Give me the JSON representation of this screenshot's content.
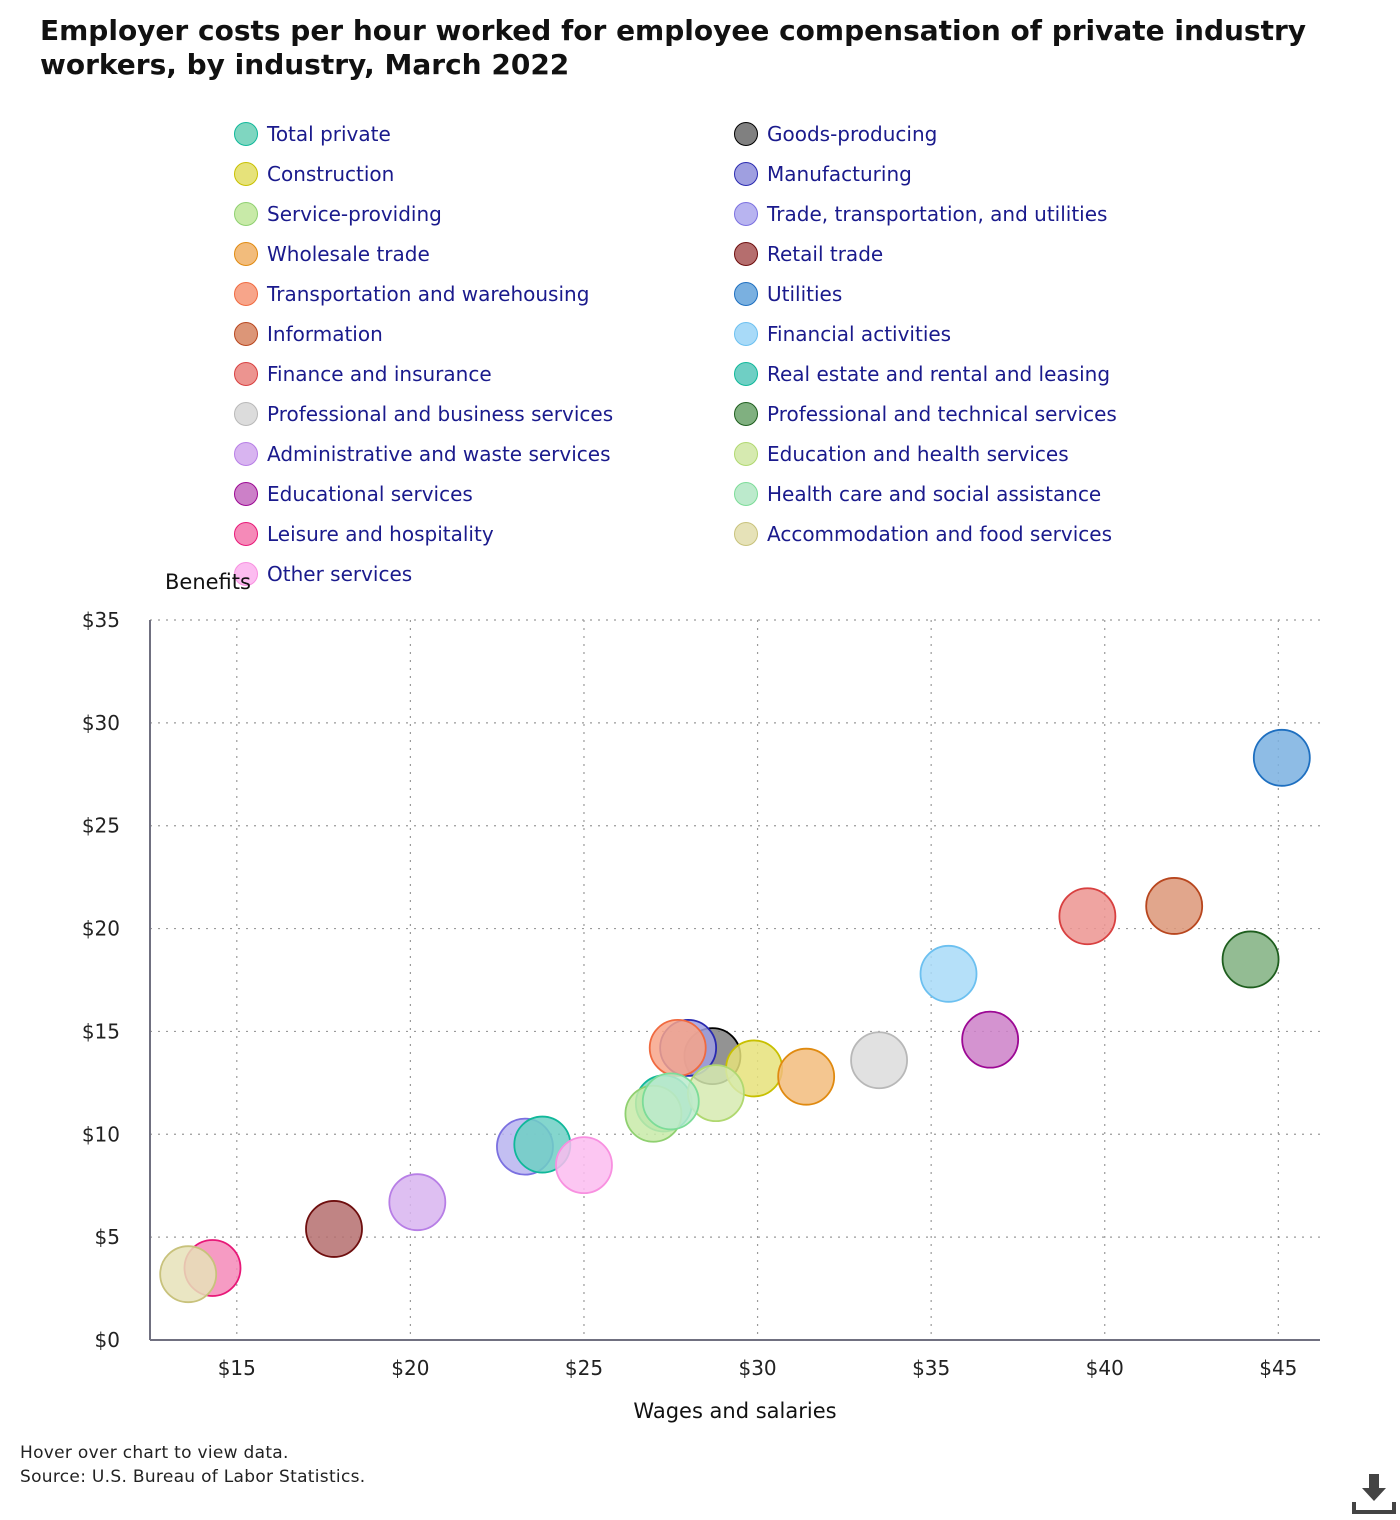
{
  "chart_data": {
    "type": "scatter",
    "title": "Employer costs per hour worked for employee compensation of private industry workers, by industry, March 2022",
    "xlabel": "Wages and salaries",
    "ylabel": "Benefits",
    "xlim": [
      12.5,
      46.2
    ],
    "ylim": [
      0,
      35
    ],
    "x_ticks": [
      15,
      20,
      25,
      30,
      35,
      40,
      45
    ],
    "x_tick_labels": [
      "$15",
      "$20",
      "$25",
      "$30",
      "$35",
      "$40",
      "$45"
    ],
    "y_ticks": [
      0,
      5,
      10,
      15,
      20,
      25,
      30,
      35
    ],
    "y_tick_labels": [
      "$0",
      "$5",
      "$10",
      "$15",
      "$20",
      "$25",
      "$30",
      "$35"
    ],
    "grid": true,
    "legend_position": "top",
    "series": [
      {
        "name": "Total private",
        "x": 27.3,
        "y": 11.5,
        "fill": "#7fd6c0",
        "stroke": "#10b89a"
      },
      {
        "name": "Goods-producing",
        "x": 28.7,
        "y": 13.8,
        "fill": "#808080",
        "stroke": "#000000"
      },
      {
        "name": "Construction",
        "x": 29.9,
        "y": 13.2,
        "fill": "#e6e27a",
        "stroke": "#c8c000"
      },
      {
        "name": "Manufacturing",
        "x": 28.0,
        "y": 14.2,
        "fill": "#9f9fe0",
        "stroke": "#2a2ab0"
      },
      {
        "name": "Service-providing",
        "x": 27.0,
        "y": 11.0,
        "fill": "#c8eaa8",
        "stroke": "#8fd070"
      },
      {
        "name": "Trade, transportation, and utilities",
        "x": 23.3,
        "y": 9.4,
        "fill": "#b8b4f0",
        "stroke": "#7b70e0"
      },
      {
        "name": "Wholesale trade",
        "x": 31.4,
        "y": 12.8,
        "fill": "#f2bc7c",
        "stroke": "#e08a10"
      },
      {
        "name": "Retail trade",
        "x": 17.8,
        "y": 5.4,
        "fill": "#b56e6e",
        "stroke": "#6e0e0e"
      },
      {
        "name": "Transportation and warehousing",
        "x": 27.7,
        "y": 14.2,
        "fill": "#f7a58a",
        "stroke": "#f06a40"
      },
      {
        "name": "Utilities",
        "x": 45.1,
        "y": 28.3,
        "fill": "#7ab0e0",
        "stroke": "#1e6fc0"
      },
      {
        "name": "Information",
        "x": 42.0,
        "y": 21.1,
        "fill": "#dc9678",
        "stroke": "#b8461e"
      },
      {
        "name": "Financial activities",
        "x": 35.5,
        "y": 17.8,
        "fill": "#a8daf8",
        "stroke": "#6cc0f0"
      },
      {
        "name": "Finance and insurance",
        "x": 39.5,
        "y": 20.6,
        "fill": "#ec9490",
        "stroke": "#d84040"
      },
      {
        "name": "Real estate and rental and leasing",
        "x": 23.8,
        "y": 9.5,
        "fill": "#6fcfc4",
        "stroke": "#10b89a"
      },
      {
        "name": "Professional and business services",
        "x": 33.5,
        "y": 13.6,
        "fill": "#dcdcdc",
        "stroke": "#b8b8b8"
      },
      {
        "name": "Professional and technical services",
        "x": 44.2,
        "y": 18.5,
        "fill": "#80b080",
        "stroke": "#1e5e1e"
      },
      {
        "name": "Administrative and waste services",
        "x": 20.2,
        "y": 6.7,
        "fill": "#d8b4f0",
        "stroke": "#b77ee6"
      },
      {
        "name": "Education and health services",
        "x": 28.8,
        "y": 12.0,
        "fill": "#d6eab0",
        "stroke": "#b0d870"
      },
      {
        "name": "Educational services",
        "x": 36.7,
        "y": 14.6,
        "fill": "#cc80c8",
        "stroke": "#9c0894"
      },
      {
        "name": "Health care and social assistance",
        "x": 27.5,
        "y": 11.6,
        "fill": "#bceacc",
        "stroke": "#7cdc98"
      },
      {
        "name": "Leisure and hospitality",
        "x": 14.3,
        "y": 3.5,
        "fill": "#f58ab8",
        "stroke": "#e81878"
      },
      {
        "name": "Accommodation and food services",
        "x": 13.6,
        "y": 3.2,
        "fill": "#e6e2b8",
        "stroke": "#c8c27c"
      },
      {
        "name": "Other services",
        "x": 25.0,
        "y": 8.5,
        "fill": "#fcbcf0",
        "stroke": "#f890e0"
      }
    ]
  },
  "footer": {
    "hover_note": "Hover over chart to view data.",
    "source": "Source: U.S. Bureau of Labor Statistics."
  },
  "icons": {
    "download": "download-icon"
  }
}
